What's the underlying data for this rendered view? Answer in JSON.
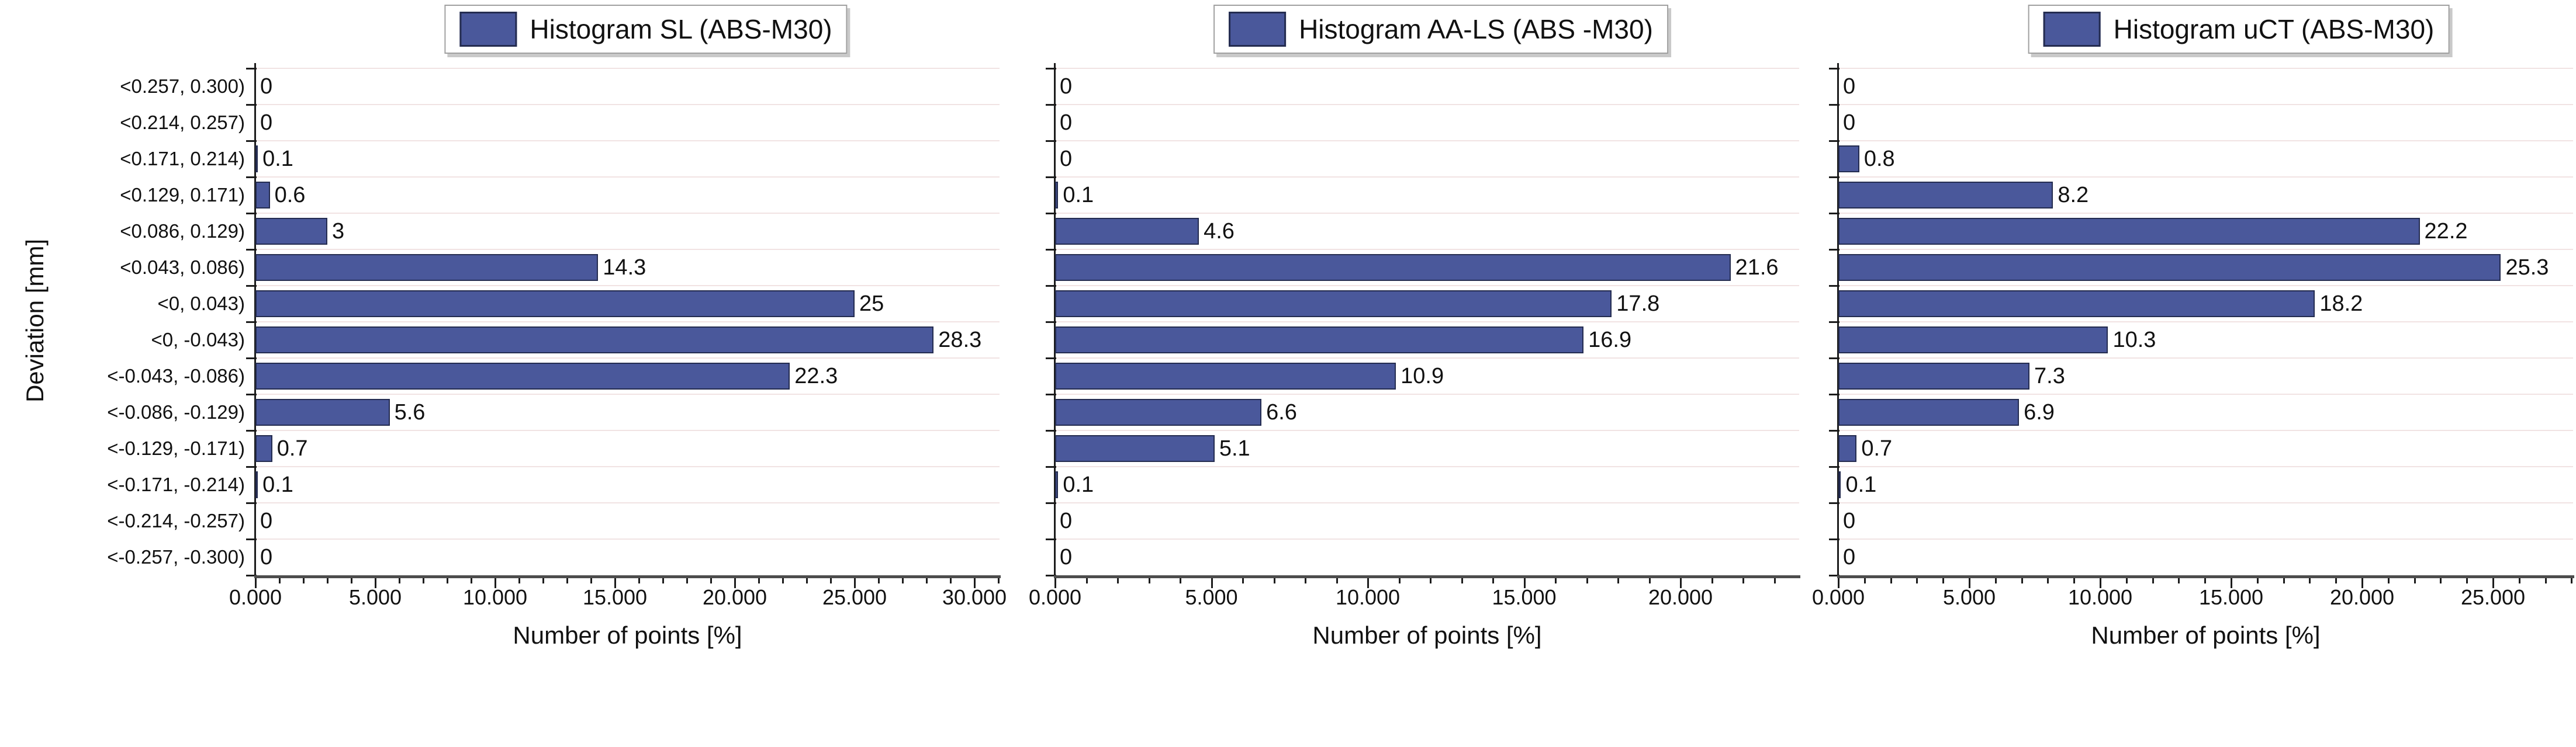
{
  "figure": {
    "y_axis_title": "Deviation [mm]",
    "x_axis_title": "Number of points [%]"
  },
  "colors": {
    "bar_fill": "#4a589b",
    "bar_border": "#242c50",
    "axis": "#1c1c1c",
    "x_axis_line": "#4d4d4d",
    "gridline": "#f1e3e3",
    "text": "#111111",
    "legend_border": "#a0a0a0",
    "legend_shadow": "#c9c9c9",
    "background": "#ffffff"
  },
  "chart_data": [
    {
      "type": "bar",
      "orientation": "horizontal",
      "title": "Histogram SL (ABS-M30)",
      "legend_position": "top-center",
      "categories": [
        "<0.257, 0.300)",
        "<0.214, 0.257)",
        "<0.171, 0.214)",
        "<0.129, 0.171)",
        "<0.086, 0.129)",
        "<0.043, 0.086)",
        "<0, 0.043)",
        "<0, -0.043)",
        "<-0.043, -0.086)",
        "<-0.086, -0.129)",
        "<-0.129, -0.171)",
        "<-0.171, -0.214)",
        "<-0.214, -0.257)",
        "<-0.257, -0.300)"
      ],
      "values": [
        0,
        0,
        0.1,
        0.6,
        3,
        14.3,
        25,
        28.3,
        22.3,
        5.6,
        0.7,
        0.1,
        0,
        0
      ],
      "xlabel": "Number of points [%]",
      "ylabel": "Deviation [mm]",
      "xlim": [
        0,
        31
      ],
      "x_tick_values": [
        0,
        5,
        10,
        15,
        20,
        25,
        30
      ],
      "x_tick_labels": [
        "0.000",
        "5.000",
        "10.000",
        "15.000",
        "20.000",
        "25.000",
        "30.000"
      ],
      "x_minor_tick_step": 1,
      "grid": "horizontal-faint"
    },
    {
      "type": "bar",
      "orientation": "horizontal",
      "title": "Histogram AA-LS (ABS -M30)",
      "legend_position": "top-center",
      "categories": [
        "<0.257, 0.300)",
        "<0.214, 0.257)",
        "<0.171, 0.214)",
        "<0.129, 0.171)",
        "<0.086, 0.129)",
        "<0.043, 0.086)",
        "<0, 0.043)",
        "<0, -0.043)",
        "<-0.043, -0.086)",
        "<-0.086, -0.129)",
        "<-0.129, -0.171)",
        "<-0.171, -0.214)",
        "<-0.214, -0.257)",
        "<-0.257, -0.300)"
      ],
      "values": [
        0,
        0,
        0,
        0.1,
        4.6,
        21.6,
        17.8,
        16.9,
        10.9,
        6.6,
        5.1,
        0.1,
        0,
        0
      ],
      "xlabel": "Number of points [%]",
      "ylabel": "",
      "xlim": [
        0,
        23.8
      ],
      "x_tick_values": [
        0,
        5,
        10,
        15,
        20
      ],
      "x_tick_labels": [
        "0.000",
        "5.000",
        "10.000",
        "15.000",
        "20.000"
      ],
      "x_minor_tick_step": 1,
      "grid": "horizontal-faint"
    },
    {
      "type": "bar",
      "orientation": "horizontal",
      "title": "Histogram uCT (ABS-M30)",
      "legend_position": "top-center",
      "categories": [
        "<0.257, 0.300)",
        "<0.214, 0.257)",
        "<0.171, 0.214)",
        "<0.129, 0.171)",
        "<0.086, 0.129)",
        "<0.043, 0.086)",
        "<0, 0.043)",
        "<0, -0.043)",
        "<-0.043, -0.086)",
        "<-0.086, -0.129)",
        "<-0.129, -0.171)",
        "<-0.171, -0.214)",
        "<-0.214, -0.257)",
        "<-0.257, -0.300)"
      ],
      "values": [
        0,
        0,
        0.8,
        8.2,
        22.2,
        25.3,
        18.2,
        10.3,
        7.3,
        6.9,
        0.7,
        0.1,
        0,
        0
      ],
      "xlabel": "Number of points [%]",
      "ylabel": "",
      "xlim": [
        0,
        28
      ],
      "x_tick_values": [
        0,
        5,
        10,
        15,
        20,
        25
      ],
      "x_tick_labels": [
        "0.000",
        "5.000",
        "10.000",
        "15.000",
        "20.000",
        "25.000"
      ],
      "x_minor_tick_step": 1,
      "grid": "horizontal-faint"
    }
  ]
}
